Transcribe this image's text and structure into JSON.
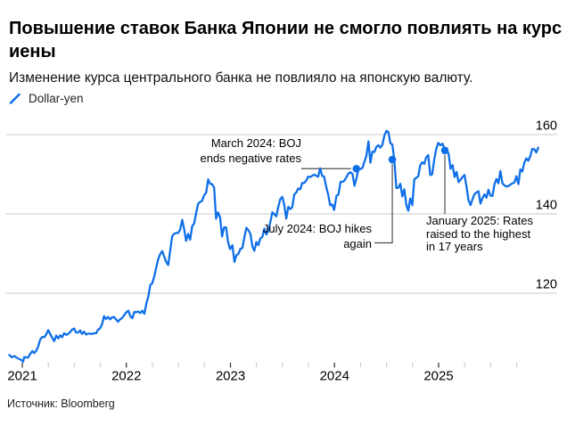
{
  "header": {
    "title_lines": [
      "Повышение ставок Банка Японии не смогло повлиять на курс",
      "иены"
    ],
    "subtitle": "Изменение курса центрального банка не повлияло на японскую валюту.",
    "legend": [
      {
        "label": "Dollar-yen",
        "color": "#0f6fe8"
      }
    ]
  },
  "source": "Источник: Bloomberg",
  "chart_data": {
    "type": "line",
    "title": "Повышение ставок Банка Японии не смогло повлиять на курс иены",
    "x_axis": {
      "years": [
        2021,
        2022,
        2023,
        2024,
        2025
      ],
      "minor_tick_quarters": [
        0.25,
        0.5,
        0.75
      ]
    },
    "y_axis": {
      "ticks": [
        120,
        140,
        160
      ],
      "side": "right"
    },
    "xlim": [
      2020.87,
      2025.96
    ],
    "ylim": [
      102.5,
      163
    ],
    "grid": "horizontal",
    "legend_position": "top-left",
    "colors": {
      "line": "#0f6fe8",
      "grid": "#dcdcdc",
      "connector": "#4d4d4d",
      "tick_major": "#3c3c3c",
      "tick_minor": "#c9c9c9"
    },
    "series": [
      {
        "name": "Dollar-yen",
        "color": "#0f6fe8",
        "lead_in": [
          [
            2020.875,
            104.4
          ],
          [
            2020.9,
            103.85
          ],
          [
            2020.925,
            104.15
          ],
          [
            2020.955,
            103.6
          ],
          [
            2020.985,
            103.25
          ],
          [
            2021.008,
            102.75
          ]
        ],
        "weekly_by_year": {
          "2021": [
            103.9,
            103.8,
            103.8,
            104.7,
            105.4,
            104.9,
            105.5,
            106.6,
            108.3,
            109.0,
            108.9,
            109.6,
            110.7,
            109.7,
            108.8,
            107.9,
            109.3,
            108.6,
            109.4,
            108.9,
            109.9,
            109.5,
            109.7,
            110.2,
            110.8,
            111.1,
            110.1,
            110.1,
            110.6,
            109.7,
            110.3,
            109.6,
            109.8,
            109.8,
            109.7,
            109.9,
            109.9,
            110.8,
            111.1,
            112.2,
            114.2,
            113.5,
            114.0,
            113.4,
            113.9,
            114.0,
            113.4,
            112.8,
            113.4,
            113.7,
            114.4,
            115.1
          ],
          "2022": [
            115.6,
            114.2,
            113.7,
            115.3,
            115.2,
            115.4,
            115.0,
            115.6,
            114.8,
            117.3,
            119.2,
            122.1,
            122.5,
            124.3,
            126.5,
            128.6,
            129.9,
            130.6,
            129.2,
            127.9,
            127.1,
            130.9,
            134.4,
            135.0,
            135.2,
            135.2,
            136.1,
            138.5,
            136.1,
            133.2,
            135.0,
            133.5,
            136.9,
            137.6,
            140.2,
            142.6,
            143.0,
            143.3,
            144.7,
            145.3,
            148.7,
            147.6,
            147.5,
            146.6,
            138.8,
            140.4,
            139.1,
            134.3,
            136.6,
            136.6,
            132.9,
            131.1
          ],
          "2023": [
            132.1,
            127.9,
            129.6,
            129.9,
            131.2,
            131.4,
            134.2,
            136.5,
            135.9,
            135.0,
            131.8,
            130.7,
            132.9,
            132.1,
            133.8,
            134.2,
            136.3,
            134.8,
            135.7,
            137.9,
            140.4,
            139.9,
            139.4,
            141.8,
            143.7,
            144.3,
            142.2,
            138.8,
            141.8,
            141.2,
            141.7,
            144.9,
            145.4,
            146.4,
            146.2,
            147.8,
            147.8,
            148.4,
            149.4,
            149.3,
            149.6,
            149.9,
            149.6,
            149.4,
            151.5,
            149.6,
            149.4,
            146.8,
            145.0,
            142.2,
            142.4,
            141.0
          ],
          "2024": [
            144.6,
            144.9,
            148.1,
            148.1,
            148.4,
            149.3,
            150.2,
            150.5,
            150.1,
            147.1,
            149.0,
            151.4,
            151.3,
            151.6,
            153.2,
            154.6,
            158.3,
            152.9,
            155.7,
            155.6,
            156.9,
            157.3,
            156.7,
            157.4,
            159.8,
            160.9,
            160.7,
            157.8,
            157.5,
            153.7,
            146.5,
            146.6,
            147.6,
            144.4,
            146.2,
            142.3,
            140.8,
            143.9,
            142.2,
            148.7,
            149.1,
            149.5,
            152.3,
            153.0,
            152.6,
            154.3,
            154.8,
            149.8,
            150.0,
            153.7,
            156.3,
            157.9
          ],
          "2025": [
            157.3,
            157.7,
            156.3,
            156.0,
            155.2,
            151.4,
            152.3,
            149.3,
            150.6,
            148.0,
            148.6,
            149.3,
            149.8,
            146.9,
            143.5,
            142.2,
            143.7,
            145.0,
            145.4,
            145.7,
            142.6,
            144.0,
            144.9,
            144.1,
            146.1,
            144.6,
            144.5,
            147.4,
            148.8,
            147.7,
            150.8,
            147.7,
            147.2,
            146.9,
            147.0,
            147.4,
            147.7,
            147.9,
            149.5,
            147.5,
            151.2,
            150.7,
            152.9,
            154.0,
            153.4,
            154.6,
            156.4,
            156.3,
            155.5,
            156.7
          ]
        }
      }
    ],
    "markers": [
      {
        "x": 2024.21,
        "value": 151.4,
        "label_lines": [
          "March 2024: BOJ",
          "ends negative rates"
        ]
      },
      {
        "x": 2024.555,
        "value": 153.7,
        "label_lines": [
          "July 2024: BOJ hikes",
          "again"
        ]
      },
      {
        "x": 2025.06,
        "value": 156.0,
        "label_lines": [
          "January 2025: Rates",
          "raised to the highest",
          "in 17 years"
        ]
      }
    ]
  }
}
